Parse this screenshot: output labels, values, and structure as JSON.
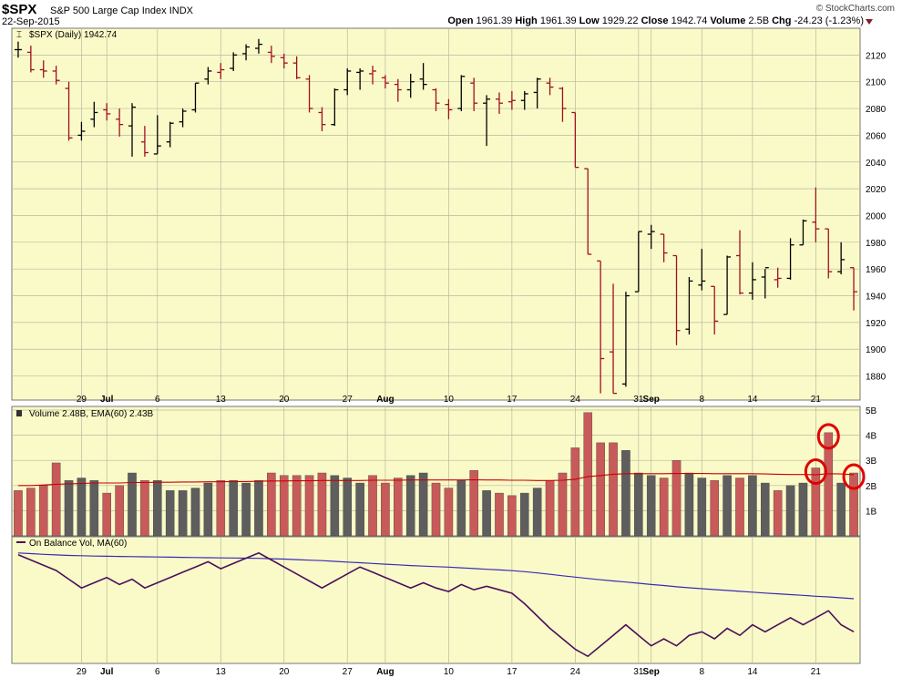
{
  "header": {
    "symbol": "$SPX",
    "name": "S&P 500 Large Cap Index",
    "exchange": "INDX",
    "date": "22-Sep-2015",
    "copyright": "© StockCharts.com",
    "open_label": "Open",
    "open": "1961.39",
    "high_label": "High",
    "high": "1961.39",
    "low_label": "Low",
    "low": "1929.22",
    "close_label": "Close",
    "close": "1942.74",
    "volume_label": "Volume",
    "volume": "2.5B",
    "chg_label": "Chg",
    "chg": "-24.23 (-1.23%)"
  },
  "chart_data": [
    {
      "type": "ohlc",
      "legend": "$SPX (Daily) 1942.74",
      "ylim": [
        1862,
        2140
      ],
      "yticks": [
        1880,
        1900,
        1920,
        1940,
        1960,
        1980,
        2000,
        2020,
        2040,
        2060,
        2080,
        2100,
        2120
      ],
      "xticks": [
        "29",
        "Jul",
        "6",
        "13",
        "20",
        "27",
        "Aug",
        "10",
        "17",
        "24",
        "31",
        "Sep",
        "8",
        "14",
        "21"
      ],
      "bars": [
        {
          "o": 2124,
          "h": 2130,
          "l": 2118,
          "c": 2124,
          "d": "up"
        },
        {
          "o": 2122,
          "h": 2127,
          "l": 2107,
          "c": 2109,
          "d": "down"
        },
        {
          "o": 2109,
          "h": 2116,
          "l": 2103,
          "c": 2108,
          "d": "down"
        },
        {
          "o": 2108,
          "h": 2112,
          "l": 2098,
          "c": 2101,
          "d": "down"
        },
        {
          "o": 2095,
          "h": 2100,
          "l": 2056,
          "c": 2058,
          "d": "down"
        },
        {
          "o": 2060,
          "h": 2070,
          "l": 2056,
          "c": 2063,
          "d": "up"
        },
        {
          "o": 2072,
          "h": 2085,
          "l": 2066,
          "c": 2077,
          "d": "up"
        },
        {
          "o": 2079,
          "h": 2084,
          "l": 2071,
          "c": 2076,
          "d": "down"
        },
        {
          "o": 2072,
          "h": 2080,
          "l": 2059,
          "c": 2068,
          "d": "down"
        },
        {
          "o": 2067,
          "h": 2084,
          "l": 2044,
          "c": 2081,
          "d": "up"
        },
        {
          "o": 2055,
          "h": 2067,
          "l": 2044,
          "c": 2047,
          "d": "down"
        },
        {
          "o": 2046,
          "h": 2075,
          "l": 2046,
          "c": 2052,
          "d": "up"
        },
        {
          "o": 2055,
          "h": 2070,
          "l": 2051,
          "c": 2069,
          "d": "up"
        },
        {
          "o": 2070,
          "h": 2080,
          "l": 2066,
          "c": 2078,
          "d": "up"
        },
        {
          "o": 2079,
          "h": 2099,
          "l": 2077,
          "c": 2099,
          "d": "up"
        },
        {
          "o": 2102,
          "h": 2111,
          "l": 2098,
          "c": 2108,
          "d": "up"
        },
        {
          "o": 2107,
          "h": 2114,
          "l": 2102,
          "c": 2109,
          "d": "down"
        },
        {
          "o": 2110,
          "h": 2122,
          "l": 2108,
          "c": 2120,
          "d": "up"
        },
        {
          "o": 2121,
          "h": 2128,
          "l": 2116,
          "c": 2126,
          "d": "up"
        },
        {
          "o": 2125,
          "h": 2132,
          "l": 2121,
          "c": 2128,
          "d": "up"
        },
        {
          "o": 2122,
          "h": 2127,
          "l": 2114,
          "c": 2119,
          "d": "down"
        },
        {
          "o": 2118,
          "h": 2121,
          "l": 2110,
          "c": 2114,
          "d": "down"
        },
        {
          "o": 2114,
          "h": 2119,
          "l": 2102,
          "c": 2103,
          "d": "down"
        },
        {
          "o": 2102,
          "h": 2105,
          "l": 2077,
          "c": 2080,
          "d": "down"
        },
        {
          "o": 2077,
          "h": 2081,
          "l": 2063,
          "c": 2068,
          "d": "down"
        },
        {
          "o": 2068,
          "h": 2095,
          "l": 2067,
          "c": 2094,
          "d": "up"
        },
        {
          "o": 2094,
          "h": 2110,
          "l": 2090,
          "c": 2108,
          "d": "up"
        },
        {
          "o": 2107,
          "h": 2110,
          "l": 2094,
          "c": 2108,
          "d": "up"
        },
        {
          "o": 2106,
          "h": 2112,
          "l": 2098,
          "c": 2108,
          "d": "down"
        },
        {
          "o": 2103,
          "h": 2105,
          "l": 2095,
          "c": 2099,
          "d": "down"
        },
        {
          "o": 2098,
          "h": 2102,
          "l": 2085,
          "c": 2094,
          "d": "down"
        },
        {
          "o": 2094,
          "h": 2106,
          "l": 2088,
          "c": 2100,
          "d": "up"
        },
        {
          "o": 2102,
          "h": 2114,
          "l": 2094,
          "c": 2098,
          "d": "up"
        },
        {
          "o": 2094,
          "h": 2095,
          "l": 2078,
          "c": 2084,
          "d": "down"
        },
        {
          "o": 2083,
          "h": 2087,
          "l": 2072,
          "c": 2079,
          "d": "down"
        },
        {
          "o": 2080,
          "h": 2105,
          "l": 2078,
          "c": 2104,
          "d": "up"
        },
        {
          "o": 2099,
          "h": 2103,
          "l": 2078,
          "c": 2084,
          "d": "down"
        },
        {
          "o": 2084,
          "h": 2090,
          "l": 2052,
          "c": 2087,
          "d": "up"
        },
        {
          "o": 2087,
          "h": 2092,
          "l": 2076,
          "c": 2084,
          "d": "down"
        },
        {
          "o": 2085,
          "h": 2093,
          "l": 2079,
          "c": 2086,
          "d": "down"
        },
        {
          "o": 2086,
          "h": 2093,
          "l": 2079,
          "c": 2091,
          "d": "up"
        },
        {
          "o": 2092,
          "h": 2103,
          "l": 2080,
          "c": 2102,
          "d": "up"
        },
        {
          "o": 2099,
          "h": 2103,
          "l": 2090,
          "c": 2096,
          "d": "down"
        },
        {
          "o": 2095,
          "h": 2096,
          "l": 2070,
          "c": 2080,
          "d": "down"
        },
        {
          "o": 2077,
          "h": 2077,
          "l": 2036,
          "c": 2036,
          "d": "down"
        },
        {
          "o": 2035,
          "h": 2035,
          "l": 1971,
          "c": 1971,
          "d": "down"
        },
        {
          "o": 1966,
          "h": 1966,
          "l": 1867,
          "c": 1893,
          "d": "down"
        },
        {
          "o": 1898,
          "h": 1949,
          "l": 1867,
          "c": 1867,
          "d": "down"
        },
        {
          "o": 1874,
          "h": 1943,
          "l": 1872,
          "c": 1940,
          "d": "up"
        },
        {
          "o": 1943,
          "h": 1988,
          "l": 1943,
          "c": 1988,
          "d": "up"
        },
        {
          "o": 1986,
          "h": 1993,
          "l": 1975,
          "c": 1988,
          "d": "up"
        },
        {
          "o": 1986,
          "h": 1986,
          "l": 1965,
          "c": 1972,
          "d": "down"
        },
        {
          "o": 1970,
          "h": 1970,
          "l": 1903,
          "c": 1914,
          "d": "down"
        },
        {
          "o": 1915,
          "h": 1954,
          "l": 1911,
          "c": 1951,
          "d": "up"
        },
        {
          "o": 1948,
          "h": 1975,
          "l": 1944,
          "c": 1951,
          "d": "up"
        },
        {
          "o": 1947,
          "h": 1947,
          "l": 1911,
          "c": 1921,
          "d": "down"
        },
        {
          "o": 1926,
          "h": 1970,
          "l": 1926,
          "c": 1969,
          "d": "up"
        },
        {
          "o": 1970,
          "h": 1989,
          "l": 1941,
          "c": 1942,
          "d": "down"
        },
        {
          "o": 1942,
          "h": 1965,
          "l": 1937,
          "c": 1952,
          "d": "up"
        },
        {
          "o": 1954,
          "h": 1960,
          "l": 1938,
          "c": 1961,
          "d": "up"
        },
        {
          "o": 1952,
          "h": 1961,
          "l": 1946,
          "c": 1953,
          "d": "down"
        },
        {
          "o": 1953,
          "h": 1983,
          "l": 1952,
          "c": 1978,
          "d": "up"
        },
        {
          "o": 1978,
          "h": 1997,
          "l": 1978,
          "c": 1996,
          "d": "up"
        },
        {
          "o": 1995,
          "h": 2021,
          "l": 1980,
          "c": 1990,
          "d": "down"
        },
        {
          "o": 1990,
          "h": 1990,
          "l": 1953,
          "c": 1958,
          "d": "down"
        },
        {
          "o": 1958,
          "h": 1980,
          "l": 1956,
          "c": 1967,
          "d": "up"
        },
        {
          "o": 1961,
          "h": 1961,
          "l": 1929,
          "c": 1943,
          "d": "down"
        }
      ]
    },
    {
      "type": "bar",
      "legend": "Volume 2.48B, EMA(60) 2.43B",
      "ylim": [
        0,
        5
      ],
      "yticks": [
        "1B",
        "2B",
        "3B",
        "4B",
        "5B"
      ],
      "ytick_values": [
        1,
        2,
        3,
        4,
        5
      ],
      "values": [
        1.8,
        1.9,
        2.0,
        2.9,
        2.2,
        2.3,
        2.2,
        1.7,
        2.0,
        2.5,
        2.2,
        2.2,
        1.8,
        1.8,
        1.9,
        2.1,
        2.2,
        2.2,
        2.1,
        2.2,
        2.5,
        2.4,
        2.4,
        2.4,
        2.5,
        2.4,
        2.3,
        2.1,
        2.4,
        2.1,
        2.3,
        2.4,
        2.5,
        2.1,
        1.9,
        2.2,
        2.6,
        1.8,
        1.7,
        1.6,
        1.7,
        1.9,
        2.2,
        2.5,
        3.5,
        4.9,
        3.7,
        3.7,
        3.4,
        2.5,
        2.4,
        2.3,
        3.0,
        2.5,
        2.3,
        2.2,
        2.4,
        2.3,
        2.4,
        2.1,
        1.8,
        2.0,
        2.1,
        2.7,
        4.1,
        2.1,
        2.5
      ],
      "directions": [
        "down",
        "down",
        "down",
        "down",
        "up",
        "up",
        "up",
        "down",
        "down",
        "up",
        "down",
        "up",
        "up",
        "up",
        "up",
        "up",
        "down",
        "up",
        "up",
        "up",
        "down",
        "down",
        "down",
        "down",
        "down",
        "up",
        "up",
        "up",
        "down",
        "down",
        "down",
        "up",
        "up",
        "down",
        "down",
        "up",
        "down",
        "up",
        "down",
        "down",
        "up",
        "up",
        "down",
        "down",
        "down",
        "down",
        "down",
        "down",
        "up",
        "up",
        "up",
        "down",
        "down",
        "up",
        "up",
        "down",
        "up",
        "down",
        "up",
        "up",
        "down",
        "up",
        "up",
        "down",
        "down",
        "up",
        "down"
      ],
      "ema": [
        2.0,
        2.0,
        2.02,
        2.05,
        2.07,
        2.08,
        2.1,
        2.1,
        2.1,
        2.12,
        2.12,
        2.13,
        2.13,
        2.14,
        2.14,
        2.15,
        2.15,
        2.16,
        2.16,
        2.17,
        2.18,
        2.18,
        2.19,
        2.19,
        2.2,
        2.2,
        2.2,
        2.2,
        2.21,
        2.21,
        2.21,
        2.22,
        2.22,
        2.22,
        2.22,
        2.22,
        2.23,
        2.22,
        2.22,
        2.21,
        2.21,
        2.2,
        2.2,
        2.21,
        2.25,
        2.35,
        2.4,
        2.45,
        2.47,
        2.47,
        2.47,
        2.47,
        2.48,
        2.48,
        2.48,
        2.47,
        2.47,
        2.47,
        2.47,
        2.46,
        2.45,
        2.44,
        2.44,
        2.43,
        2.47,
        2.46,
        2.43
      ],
      "highlighted_bars": [
        63,
        64,
        66
      ],
      "colors": {
        "up": "#5e5e5e",
        "down": "#c85a5a",
        "ema": "#cc0000",
        "highlight": "#e00000"
      }
    },
    {
      "type": "line",
      "legend": "On Balance Vol, MA(60)",
      "obv": [
        10,
        7,
        4,
        1,
        -4,
        -9,
        -6,
        -3,
        -7,
        -4,
        -9,
        -6,
        -3,
        0,
        3,
        6,
        2,
        5,
        8,
        11,
        7,
        3,
        -1,
        -5,
        -9,
        -5,
        -1,
        3,
        0,
        -3,
        -6,
        -9,
        -6,
        -9,
        -11,
        -7,
        -10,
        -8,
        -10,
        -12,
        -18,
        -25,
        -32,
        -38,
        -44,
        -48,
        -42,
        -36,
        -30,
        -36,
        -42,
        -38,
        -42,
        -36,
        -34,
        -38,
        -32,
        -36,
        -30,
        -34,
        -30,
        -26,
        -30,
        -26,
        -22,
        -30,
        -34
      ],
      "ma": [
        11,
        10.6,
        10.2,
        9.9,
        9.6,
        9.4,
        9.2,
        9.1,
        9.0,
        8.9,
        8.8,
        8.7,
        8.6,
        8.5,
        8.4,
        8.3,
        8.2,
        8.1,
        8.0,
        7.9,
        7.7,
        7.5,
        7.2,
        6.9,
        6.6,
        6.2,
        5.8,
        5.4,
        5.0,
        4.6,
        4.2,
        3.8,
        3.5,
        3.2,
        2.9,
        2.5,
        2.1,
        1.7,
        1.3,
        0.9,
        0.3,
        -0.4,
        -1.2,
        -2.0,
        -2.8,
        -3.6,
        -4.3,
        -5.0,
        -5.6,
        -6.3,
        -7.0,
        -7.6,
        -8.3,
        -8.9,
        -9.4,
        -9.9,
        -10.4,
        -10.9,
        -11.4,
        -11.9,
        -12.3,
        -12.8,
        -13.2,
        -13.7,
        -14.1,
        -14.6,
        -15.1
      ],
      "colors": {
        "obv": "#4b0f5a",
        "ma": "#3a2bb5"
      }
    }
  ],
  "colors": {
    "panel_bg": "#fafac8",
    "grid": "#b8b8a0",
    "up": "#000000",
    "down": "#a01020"
  }
}
